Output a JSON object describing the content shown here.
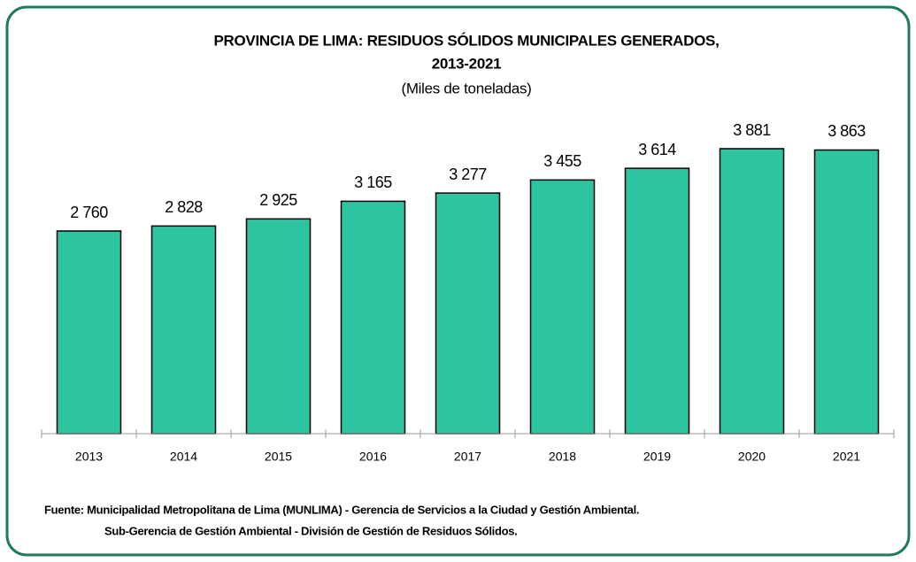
{
  "chart_data": {
    "type": "bar",
    "title": [
      "PROVINCIA DE LIMA: RESIDUOS SÓLIDOS MUNICIPALES GENERADOS,",
      "2013-2021"
    ],
    "subtitle": "(Miles de toneladas)",
    "categories": [
      "2013",
      "2014",
      "2015",
      "2016",
      "2017",
      "2018",
      "2019",
      "2020",
      "2021"
    ],
    "values": [
      2760,
      2828,
      2925,
      3165,
      3277,
      3455,
      3614,
      3881,
      3863
    ],
    "value_labels": [
      "2 760",
      "2 828",
      "2 925",
      "3 165",
      "3 277",
      "3 455",
      "3 614",
      "3 881",
      "3 863"
    ],
    "color": "#2ec4a0",
    "source": [
      "Fuente: Municipalidad Metropolitana de Lima (MUNLIMA) - Gerencia de Servicios a la Ciudad y Gestión Ambiental.",
      "Sub-Gerencia de Gestión Ambiental - División de Gestión de Residuos Sólidos."
    ]
  }
}
